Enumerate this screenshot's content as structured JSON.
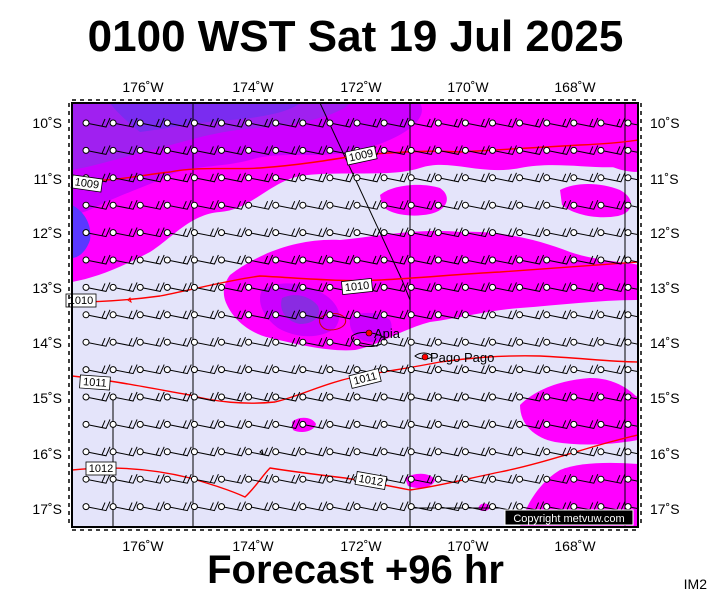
{
  "title": "0100 WST Sat 19 Jul 2025",
  "footer": "Forecast +96 hr",
  "image_tag": "IM2",
  "copyright": "Copyright metvuw.com",
  "longitude_labels": [
    "176˚W",
    "174˚W",
    "172˚W",
    "170˚W",
    "168˚W"
  ],
  "latitude_labels": [
    "10˚S",
    "11˚S",
    "12˚S",
    "13˚S",
    "14˚S",
    "15˚S",
    "16˚S",
    "17˚S"
  ],
  "places": [
    {
      "name": "Apia"
    },
    {
      "name": "Pago Pago"
    }
  ],
  "isobar_labels": [
    "1009",
    "1009",
    "1010",
    "1010",
    "1011",
    "1011",
    "1012",
    "1012"
  ],
  "colors": {
    "background": "#e4e4fa",
    "magenta": "#ff00ff",
    "violet": "#cc00ff",
    "purple": "#8a2be2",
    "blue": "#4b3cff",
    "isobar": "#ff0000",
    "land": "#ff0000"
  }
}
